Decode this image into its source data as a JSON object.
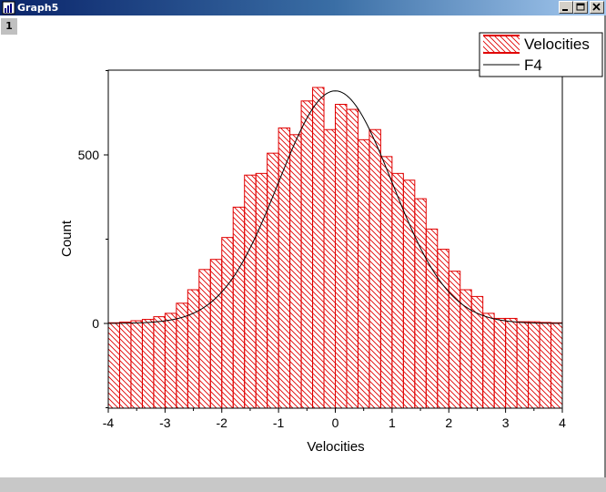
{
  "window": {
    "title": "Graph5",
    "layer_label": "1",
    "controls": [
      "minimize",
      "maximize",
      "close"
    ]
  },
  "legend": {
    "entries": [
      {
        "label": "Velocities",
        "style": "hatched-bar",
        "color": "#e00000"
      },
      {
        "label": "F4",
        "style": "line",
        "color": "#000000"
      }
    ]
  },
  "chart_data": {
    "type": "bar",
    "title": "",
    "xlabel": "Velocities",
    "ylabel": "Count",
    "xlim": [
      -4,
      4
    ],
    "ylim": [
      -250,
      750
    ],
    "xticks": [
      "-4",
      "-3",
      "-2",
      "-1",
      "0",
      "1",
      "2",
      "3",
      "4"
    ],
    "yticks": [
      "0",
      "500"
    ],
    "grid": false,
    "legend_position": "top-right",
    "bin_width": 0.2,
    "series": [
      {
        "name": "Velocities",
        "kind": "histogram",
        "color": "#e00000",
        "fill": "diagonal-hatch",
        "bin_centers": [
          -3.9,
          -3.7,
          -3.5,
          -3.3,
          -3.1,
          -2.9,
          -2.7,
          -2.5,
          -2.3,
          -2.1,
          -1.9,
          -1.7,
          -1.5,
          -1.3,
          -1.1,
          -0.9,
          -0.7,
          -0.5,
          -0.3,
          -0.1,
          0.1,
          0.3,
          0.5,
          0.7,
          0.9,
          1.1,
          1.3,
          1.5,
          1.7,
          1.9,
          2.1,
          2.3,
          2.5,
          2.7,
          2.9,
          3.1,
          3.3,
          3.5,
          3.7,
          3.9
        ],
        "values": [
          2,
          4,
          8,
          12,
          20,
          30,
          60,
          100,
          160,
          190,
          255,
          345,
          440,
          445,
          505,
          580,
          560,
          660,
          700,
          575,
          650,
          635,
          545,
          575,
          495,
          445,
          425,
          370,
          280,
          220,
          155,
          100,
          80,
          30,
          15,
          15,
          5,
          5,
          3,
          2
        ]
      },
      {
        "name": "F4",
        "kind": "gaussian-fit",
        "color": "#000000",
        "amplitude": 690,
        "center": 0,
        "sigma": 1.0
      }
    ]
  }
}
